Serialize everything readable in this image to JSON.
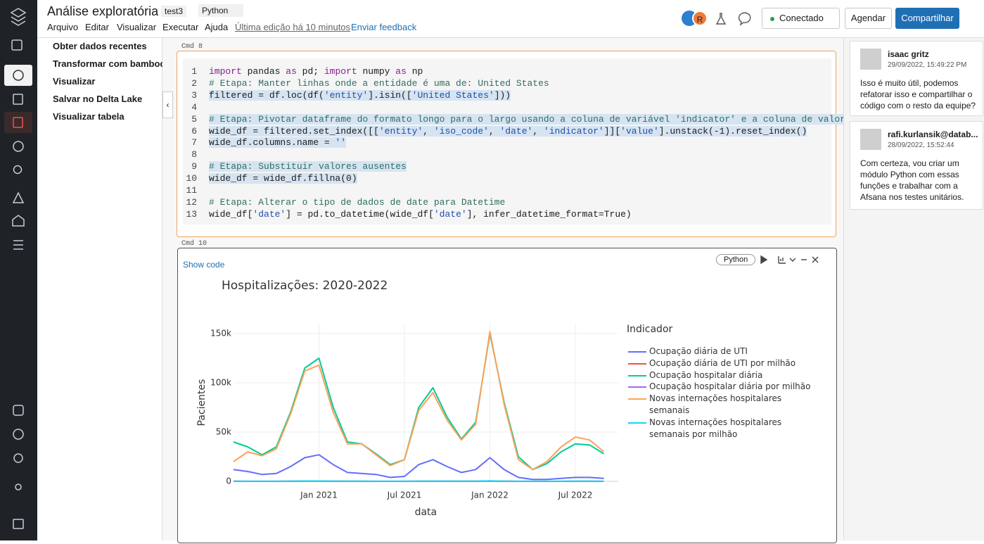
{
  "header": {
    "title": "Análise exploratória",
    "user_tag": "test3",
    "language": "Python",
    "menu": [
      "Arquivo",
      "Editar",
      "Visualizar",
      "Executar",
      "Ajuda"
    ],
    "last_edit": "Última edição há 10 minutos",
    "feedback": "Enviar feedback",
    "avatar": "R",
    "status": "Conectado",
    "schedule": "Agendar",
    "share": "Compartilhar"
  },
  "side_panel": {
    "items": [
      "Obter dados recentes",
      "Transformar com bamboolib",
      "Visualizar",
      "Salvar no Delta Lake",
      "Visualizar tabela"
    ]
  },
  "cells": [
    {
      "label": "Cmd 8",
      "lines": [
        {
          "n": 1,
          "code": "import pandas as pd; import numpy as np"
        },
        {
          "n": 2,
          "code": "# Etapa: Manter linhas onde a entidade é uma de: United States"
        },
        {
          "n": 3,
          "code": "filtered = df.loc(df('entity'].isin(['United States']))",
          "selected": true
        },
        {
          "n": 4
        },
        {
          "n": 5,
          "code": "# Etapa: Pivotar dataframe do formato longo para o largo usando a coluna de variável 'indicator' e a coluna de valor 'value'",
          "selected": true
        },
        {
          "n": 6,
          "code": "wide_df = filtered.set_index([['entity', 'iso_code', 'date', 'indicator']]['value'].unstack(-1).reset_index()",
          "selected": true
        },
        {
          "n": 7,
          "code": "wide_df.columns.name = ''",
          "selected": true
        },
        {
          "n": 8
        },
        {
          "n": 9,
          "code": "# Etapa: Substituir valores ausentes",
          "selected": true
        },
        {
          "n": 10,
          "code": "wide_df = wide_df.fillna(0)",
          "selected": true
        },
        {
          "n": 11
        },
        {
          "n": 12,
          "code": "# Etapa: Alterar o tipo de dados de date para Datetime"
        },
        {
          "n": 13,
          "code": "wide_df['date'] = pd.to_datetime(wide_df['date'], infer_datetime_format=True)"
        }
      ]
    },
    {
      "label": "Cmd 10",
      "show_code": "Show code",
      "language": "Python"
    }
  ],
  "chart_data": {
    "type": "line",
    "title": "Hospitalizações: 2020-2022",
    "x_label": "data",
    "y_label": "Pacientes",
    "legend_title": "Indicador",
    "x": [
      "2020-07",
      "2020-08",
      "2020-09",
      "2020-10",
      "2020-11",
      "2020-12",
      "2021-01",
      "2021-02",
      "2021-03",
      "2021-04",
      "2021-05",
      "2021-06",
      "2021-07",
      "2021-08",
      "2021-09",
      "2021-10",
      "2021-11",
      "2021-12",
      "2022-01",
      "2022-02",
      "2022-03",
      "2022-04",
      "2022-05",
      "2022-06",
      "2022-07",
      "2022-08",
      "2022-09"
    ],
    "xlim": [
      "2020-07",
      "2022-10"
    ],
    "xticks": [
      {
        "value": "2021-01",
        "label": "Jan 2021"
      },
      {
        "value": "2021-07",
        "label": "Jul 2021"
      },
      {
        "value": "2022-01",
        "label": "Jan 2022"
      },
      {
        "value": "2022-07",
        "label": "Jul 2022"
      }
    ],
    "ylim": [
      0,
      160000
    ],
    "yticks": [
      0,
      {
        "value": 50000,
        "label": "50k"
      },
      {
        "value": 100000,
        "label": "100k"
      },
      {
        "value": 150000,
        "label": "150k"
      }
    ],
    "grid": true,
    "series": [
      {
        "name": "Ocupação diária de UTI",
        "color": "#636efa",
        "values": [
          12000,
          10000,
          7000,
          8000,
          15000,
          24000,
          27000,
          17000,
          9000,
          8000,
          7000,
          4000,
          5000,
          17000,
          22000,
          15000,
          9000,
          12000,
          24000,
          12000,
          4000,
          2000,
          2000,
          3000,
          4000,
          4000,
          3000
        ]
      },
      {
        "name": "Ocupação diária de UTI por milhão",
        "color": "#ef553b",
        "values": [
          36,
          30,
          21,
          24,
          45,
          72,
          81,
          51,
          27,
          24,
          21,
          12,
          15,
          51,
          66,
          45,
          27,
          36,
          72,
          36,
          12,
          6,
          6,
          9,
          12,
          12,
          9
        ]
      },
      {
        "name": "Ocupação hospitalar diária",
        "color": "#00cc96",
        "values": [
          40000,
          35000,
          27000,
          35000,
          70000,
          115000,
          125000,
          75000,
          40000,
          38000,
          28000,
          17000,
          22000,
          75000,
          95000,
          65000,
          43000,
          60000,
          150000,
          80000,
          25000,
          12000,
          18000,
          30000,
          38000,
          37000,
          28000
        ]
      },
      {
        "name": "Ocupação hospitalar diária por milhão",
        "color": "#ab63fa",
        "values": [
          120,
          105,
          81,
          105,
          210,
          345,
          375,
          225,
          120,
          114,
          84,
          51,
          66,
          225,
          285,
          195,
          129,
          180,
          450,
          240,
          75,
          36,
          54,
          90,
          114,
          111,
          84
        ]
      },
      {
        "name": "Novas internações hospitalares semanais",
        "color": "#ffa15a",
        "values": [
          20000,
          30000,
          26000,
          33000,
          68000,
          112000,
          118000,
          70000,
          38000,
          38000,
          27000,
          16000,
          22000,
          72000,
          90000,
          62000,
          42000,
          58000,
          152000,
          78000,
          22000,
          12000,
          20000,
          35000,
          45000,
          42000,
          30000
        ]
      },
      {
        "name": "Novas internações hospitalares semanais por milhão",
        "color": "#19d3f3",
        "values": [
          60,
          90,
          78,
          99,
          204,
          336,
          354,
          210,
          114,
          114,
          81,
          48,
          66,
          216,
          270,
          186,
          126,
          174,
          456,
          234,
          66,
          36,
          60,
          105,
          135,
          126,
          90
        ]
      }
    ]
  },
  "comments": [
    {
      "author": "isaac gritz",
      "date": "29/09/2022, 15:49:22 PM",
      "text": "Isso é muito útil, podemos refatorar isso e compartilhar o código com o resto da equipe?"
    },
    {
      "author": "rafi.kurlansik@datab...",
      "date": "28/09/2022, 15:52:44",
      "text": "Com certeza, vou criar um módulo Python com essas funções e trabalhar com a Afsana nos testes unitários."
    }
  ]
}
